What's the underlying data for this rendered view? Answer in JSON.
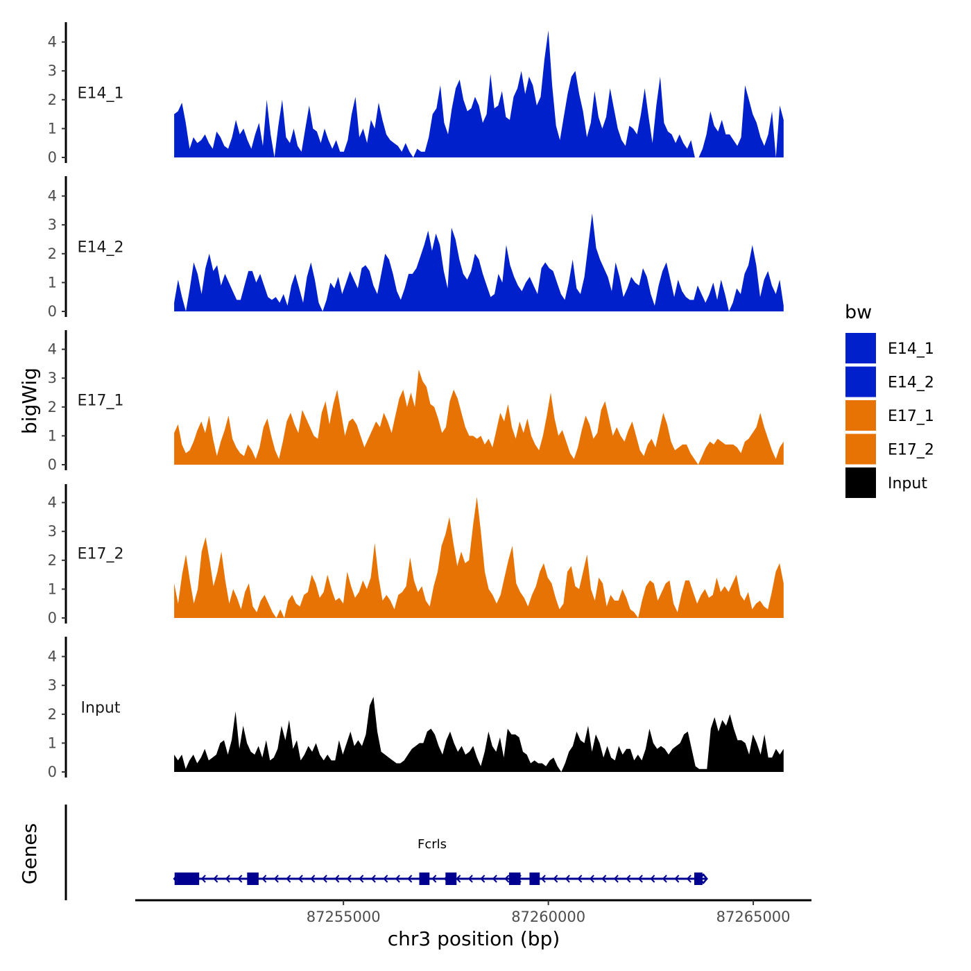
{
  "chart_data": {
    "type": "area",
    "ylabel": "bigWig",
    "xlabel": "chr3 position (bp)",
    "genes_label": "Genes",
    "x_range": [
      87250870,
      87265740
    ],
    "xlim": [
      87249920,
      87266420
    ],
    "x_ticks": [
      {
        "value": 87255000,
        "label": "87255000"
      },
      {
        "value": 87260000,
        "label": "87260000"
      },
      {
        "value": 87265000,
        "label": "87265000"
      }
    ],
    "ylim": [
      0,
      4.5
    ],
    "y_ticks": [
      {
        "value": 0,
        "label": "0"
      },
      {
        "value": 1,
        "label": "1"
      },
      {
        "value": 2,
        "label": "2"
      },
      {
        "value": 3,
        "label": "3"
      },
      {
        "value": 4,
        "label": "4"
      }
    ],
    "legend": {
      "title": "bw",
      "items": [
        {
          "label": "E14_1",
          "color": "#0020CC"
        },
        {
          "label": "E14_2",
          "color": "#0020CC"
        },
        {
          "label": "E17_1",
          "color": "#E87305"
        },
        {
          "label": "E17_2",
          "color": "#E87305"
        },
        {
          "label": "Input",
          "color": "#000000"
        }
      ]
    },
    "series": [
      {
        "name": "E14_1",
        "color": "#0020CC",
        "values": [
          1.5,
          1.6,
          1.9,
          1.2,
          0.3,
          0.7,
          0.5,
          0.6,
          0.8,
          0.5,
          0.3,
          0.9,
          0.7,
          0.4,
          0.3,
          0.7,
          1.3,
          0.8,
          1.0,
          0.6,
          0.3,
          0.8,
          1.2,
          0.4,
          2.0,
          0.8,
          0.0,
          1.1,
          2.0,
          0.7,
          0.5,
          1.0,
          0.4,
          0.2,
          1.0,
          1.8,
          1.0,
          0.9,
          0.5,
          1.0,
          0.6,
          0.3,
          0.6,
          0.2,
          0.2,
          0.6,
          1.5,
          2.1,
          0.7,
          1.0,
          0.5,
          1.3,
          1.0,
          1.9,
          1.3,
          0.8,
          0.6,
          0.5,
          0.4,
          0.2,
          0.5,
          0.2,
          0.0,
          0.3,
          0.2,
          0.2,
          0.7,
          1.5,
          1.7,
          2.5,
          1.2,
          0.8,
          1.7,
          2.4,
          2.7,
          2.0,
          1.6,
          1.7,
          2.1,
          1.8,
          1.2,
          1.5,
          2.9,
          1.7,
          1.8,
          2.3,
          1.4,
          1.3,
          2.1,
          2.4,
          3.0,
          2.2,
          2.8,
          2.5,
          1.8,
          2.1,
          3.4,
          4.4,
          2.5,
          1.1,
          0.6,
          1.4,
          2.2,
          2.8,
          3.0,
          2.2,
          1.6,
          0.7,
          1.2,
          2.3,
          1.4,
          1.0,
          1.4,
          2.4,
          1.7,
          1.0,
          0.6,
          0.4,
          1.1,
          1.0,
          0.8,
          1.5,
          2.4,
          1.4,
          0.5,
          1.8,
          2.8,
          1.2,
          0.9,
          0.8,
          0.5,
          0.8,
          0.5,
          0.3,
          0.6,
          0.0,
          0.0,
          0.3,
          0.8,
          1.6,
          1.1,
          0.9,
          1.3,
          0.8,
          0.8,
          0.6,
          0.4,
          0.7,
          2.5,
          2.0,
          1.5,
          1.2,
          0.7,
          0.4,
          0.8,
          1.6,
          0.0,
          1.8,
          1.3
        ]
      },
      {
        "name": "E14_2",
        "color": "#0020CC",
        "values": [
          0.3,
          1.1,
          0.5,
          0.0,
          0.8,
          1.7,
          1.3,
          0.6,
          1.5,
          2.0,
          1.4,
          1.6,
          0.9,
          1.3,
          1.0,
          0.7,
          0.4,
          0.4,
          0.9,
          1.4,
          1.4,
          1.0,
          1.3,
          0.9,
          0.5,
          0.4,
          0.5,
          0.3,
          0.6,
          0.2,
          0.9,
          1.3,
          0.8,
          0.3,
          1.2,
          1.7,
          1.1,
          0.3,
          0.0,
          0.4,
          1.0,
          0.8,
          1.2,
          0.6,
          1.0,
          1.4,
          1.1,
          0.8,
          1.5,
          1.6,
          1.4,
          0.9,
          0.6,
          1.3,
          2.0,
          1.8,
          1.3,
          0.7,
          0.4,
          0.8,
          1.3,
          1.3,
          1.5,
          1.9,
          2.3,
          2.8,
          2.1,
          2.7,
          2.3,
          1.4,
          0.8,
          2.9,
          2.5,
          1.8,
          1.3,
          1.1,
          1.4,
          2.0,
          1.8,
          1.3,
          0.9,
          0.5,
          0.6,
          1.3,
          1.0,
          2.3,
          1.6,
          1.2,
          0.9,
          0.7,
          1.0,
          1.2,
          0.9,
          0.6,
          1.5,
          1.7,
          1.5,
          1.4,
          1.0,
          0.6,
          0.4,
          1.0,
          1.8,
          0.8,
          0.6,
          1.2,
          2.3,
          3.4,
          2.2,
          1.8,
          1.5,
          1.2,
          0.7,
          1.7,
          1.2,
          0.5,
          0.8,
          1.2,
          1.0,
          0.9,
          1.5,
          1.2,
          0.6,
          0.2,
          0.9,
          1.4,
          1.7,
          1.1,
          0.5,
          1.1,
          0.7,
          0.5,
          0.4,
          0.4,
          0.9,
          0.6,
          0.3,
          0.6,
          1.0,
          0.4,
          1.1,
          0.6,
          0.0,
          0.3,
          0.8,
          0.6,
          1.3,
          1.6,
          2.3,
          1.6,
          0.5,
          1.1,
          1.4,
          0.9,
          0.6,
          1.1,
          0.2
        ]
      },
      {
        "name": "E17_1",
        "color": "#E87305",
        "values": [
          1.1,
          1.4,
          0.7,
          0.4,
          0.5,
          0.8,
          1.2,
          1.5,
          1.1,
          1.7,
          0.9,
          0.3,
          0.8,
          1.2,
          1.7,
          0.9,
          0.6,
          0.4,
          0.3,
          0.7,
          0.5,
          0.2,
          0.6,
          1.3,
          1.6,
          1.0,
          0.5,
          0.2,
          0.8,
          1.5,
          1.8,
          1.4,
          1.1,
          1.9,
          1.6,
          1.3,
          1.0,
          0.9,
          1.8,
          2.2,
          1.4,
          2.1,
          2.6,
          1.8,
          1.0,
          1.5,
          1.6,
          1.4,
          1.0,
          0.6,
          0.9,
          1.2,
          1.5,
          1.3,
          1.8,
          1.5,
          1.1,
          1.7,
          2.3,
          2.6,
          2.0,
          2.5,
          2.0,
          3.3,
          2.9,
          2.7,
          2.1,
          2.0,
          1.6,
          1.1,
          1.3,
          2.2,
          2.6,
          2.3,
          1.8,
          1.3,
          1.0,
          1.0,
          0.9,
          1.0,
          0.7,
          0.9,
          0.6,
          1.2,
          1.8,
          1.5,
          2.1,
          1.3,
          0.9,
          1.5,
          1.1,
          1.6,
          1.0,
          0.7,
          0.5,
          1.0,
          1.7,
          2.5,
          1.6,
          1.0,
          1.2,
          0.8,
          0.4,
          0.2,
          0.6,
          1.2,
          1.7,
          1.4,
          0.9,
          1.1,
          1.9,
          2.2,
          1.6,
          1.0,
          1.3,
          1.0,
          0.8,
          1.2,
          1.5,
          1.0,
          0.5,
          0.3,
          0.7,
          0.9,
          0.6,
          1.2,
          1.8,
          1.4,
          0.8,
          0.5,
          0.6,
          0.7,
          0.7,
          0.4,
          0.2,
          0.0,
          0.3,
          0.6,
          0.8,
          0.7,
          0.9,
          0.8,
          0.7,
          0.7,
          0.7,
          0.6,
          0.4,
          0.8,
          0.9,
          1.1,
          1.3,
          1.8,
          1.3,
          0.9,
          0.5,
          0.2,
          0.6,
          0.8
        ]
      },
      {
        "name": "E17_2",
        "color": "#E87305",
        "values": [
          1.2,
          0.5,
          1.5,
          2.2,
          1.3,
          0.5,
          1.0,
          2.3,
          2.8,
          2.0,
          1.1,
          1.6,
          2.3,
          1.3,
          0.5,
          1.0,
          0.7,
          0.3,
          0.9,
          1.2,
          0.4,
          0.2,
          0.6,
          0.8,
          0.5,
          0.2,
          0.0,
          0.3,
          0.0,
          0.6,
          0.8,
          0.5,
          0.4,
          0.8,
          0.9,
          1.5,
          1.2,
          0.7,
          0.9,
          1.5,
          1.0,
          0.6,
          0.7,
          0.5,
          1.6,
          1.1,
          0.7,
          0.9,
          1.3,
          1.0,
          1.4,
          2.6,
          1.4,
          0.6,
          0.8,
          0.6,
          0.3,
          0.8,
          0.9,
          1.1,
          2.1,
          1.3,
          0.9,
          1.1,
          0.6,
          0.4,
          1.1,
          1.6,
          2.5,
          2.9,
          3.5,
          2.6,
          1.8,
          2.3,
          1.9,
          2.0,
          3.2,
          4.2,
          3.0,
          1.6,
          1.0,
          0.8,
          0.5,
          0.8,
          1.4,
          2.0,
          2.5,
          1.2,
          0.9,
          0.7,
          0.4,
          0.8,
          1.1,
          1.6,
          1.9,
          1.4,
          1.2,
          0.7,
          0.3,
          0.5,
          1.6,
          1.8,
          1.1,
          1.0,
          1.6,
          2.2,
          1.0,
          0.6,
          1.4,
          1.2,
          0.4,
          0.8,
          0.6,
          0.6,
          1.0,
          0.7,
          0.3,
          0.2,
          0.0,
          0.6,
          1.1,
          1.3,
          1.2,
          0.6,
          0.9,
          1.2,
          1.3,
          0.5,
          0.2,
          0.8,
          1.3,
          1.3,
          0.9,
          0.5,
          0.8,
          1.0,
          0.7,
          0.8,
          1.4,
          0.9,
          1.1,
          0.9,
          1.2,
          1.5,
          0.8,
          0.6,
          0.9,
          0.3,
          0.5,
          0.6,
          0.4,
          0.3,
          0.9,
          1.6,
          1.9,
          1.2
        ]
      },
      {
        "name": "Input",
        "color": "#000000",
        "values": [
          0.6,
          0.4,
          0.6,
          0.1,
          0.4,
          0.6,
          0.3,
          0.5,
          0.8,
          0.4,
          0.5,
          0.6,
          1.0,
          1.1,
          0.6,
          1.1,
          2.1,
          0.8,
          1.6,
          1.0,
          0.7,
          0.6,
          0.9,
          0.5,
          1.1,
          0.4,
          0.5,
          0.8,
          1.6,
          1.1,
          1.8,
          0.8,
          1.1,
          0.4,
          0.6,
          0.9,
          0.7,
          1.0,
          0.6,
          0.4,
          0.6,
          0.4,
          0.4,
          1.1,
          0.6,
          1.0,
          1.4,
          0.9,
          1.1,
          0.9,
          1.3,
          2.3,
          2.6,
          1.4,
          0.7,
          0.6,
          0.5,
          0.4,
          0.3,
          0.3,
          0.4,
          0.6,
          0.8,
          0.9,
          1.0,
          1.0,
          1.4,
          1.5,
          1.3,
          0.9,
          0.6,
          1.1,
          1.4,
          1.0,
          0.7,
          0.9,
          0.6,
          0.7,
          0.9,
          0.5,
          0.2,
          0.7,
          1.4,
          0.9,
          0.7,
          1.2,
          0.5,
          1.5,
          1.3,
          1.3,
          1.2,
          0.7,
          0.6,
          0.3,
          0.4,
          0.3,
          0.3,
          0.2,
          0.4,
          0.5,
          0.2,
          0.0,
          0.3,
          0.7,
          0.9,
          1.4,
          1.1,
          1.0,
          1.6,
          0.7,
          1.3,
          1.0,
          0.5,
          0.9,
          0.5,
          0.4,
          0.9,
          0.6,
          0.8,
          0.8,
          0.4,
          0.6,
          0.4,
          0.8,
          1.5,
          1.0,
          0.8,
          0.9,
          0.8,
          0.6,
          0.8,
          0.9,
          1.0,
          1.3,
          1.4,
          0.8,
          0.2,
          0.1,
          0.1,
          0.1,
          1.5,
          1.9,
          1.4,
          1.8,
          1.6,
          2.0,
          1.5,
          1.1,
          1.1,
          1.0,
          0.6,
          1.3,
          1.0,
          0.6,
          1.3,
          0.5,
          0.5,
          0.8,
          0.6,
          0.8
        ]
      }
    ],
    "gene": {
      "name": "Fcrls",
      "strand": "-",
      "start": 87250870,
      "end": 87263870,
      "color": "#000090",
      "exons": [
        [
          87250880,
          87251480
        ],
        [
          87252650,
          87252930
        ],
        [
          87256850,
          87257100
        ],
        [
          87257490,
          87257760
        ],
        [
          87259040,
          87259320
        ],
        [
          87259540,
          87259790
        ],
        [
          87263560,
          87263760
        ]
      ]
    }
  }
}
